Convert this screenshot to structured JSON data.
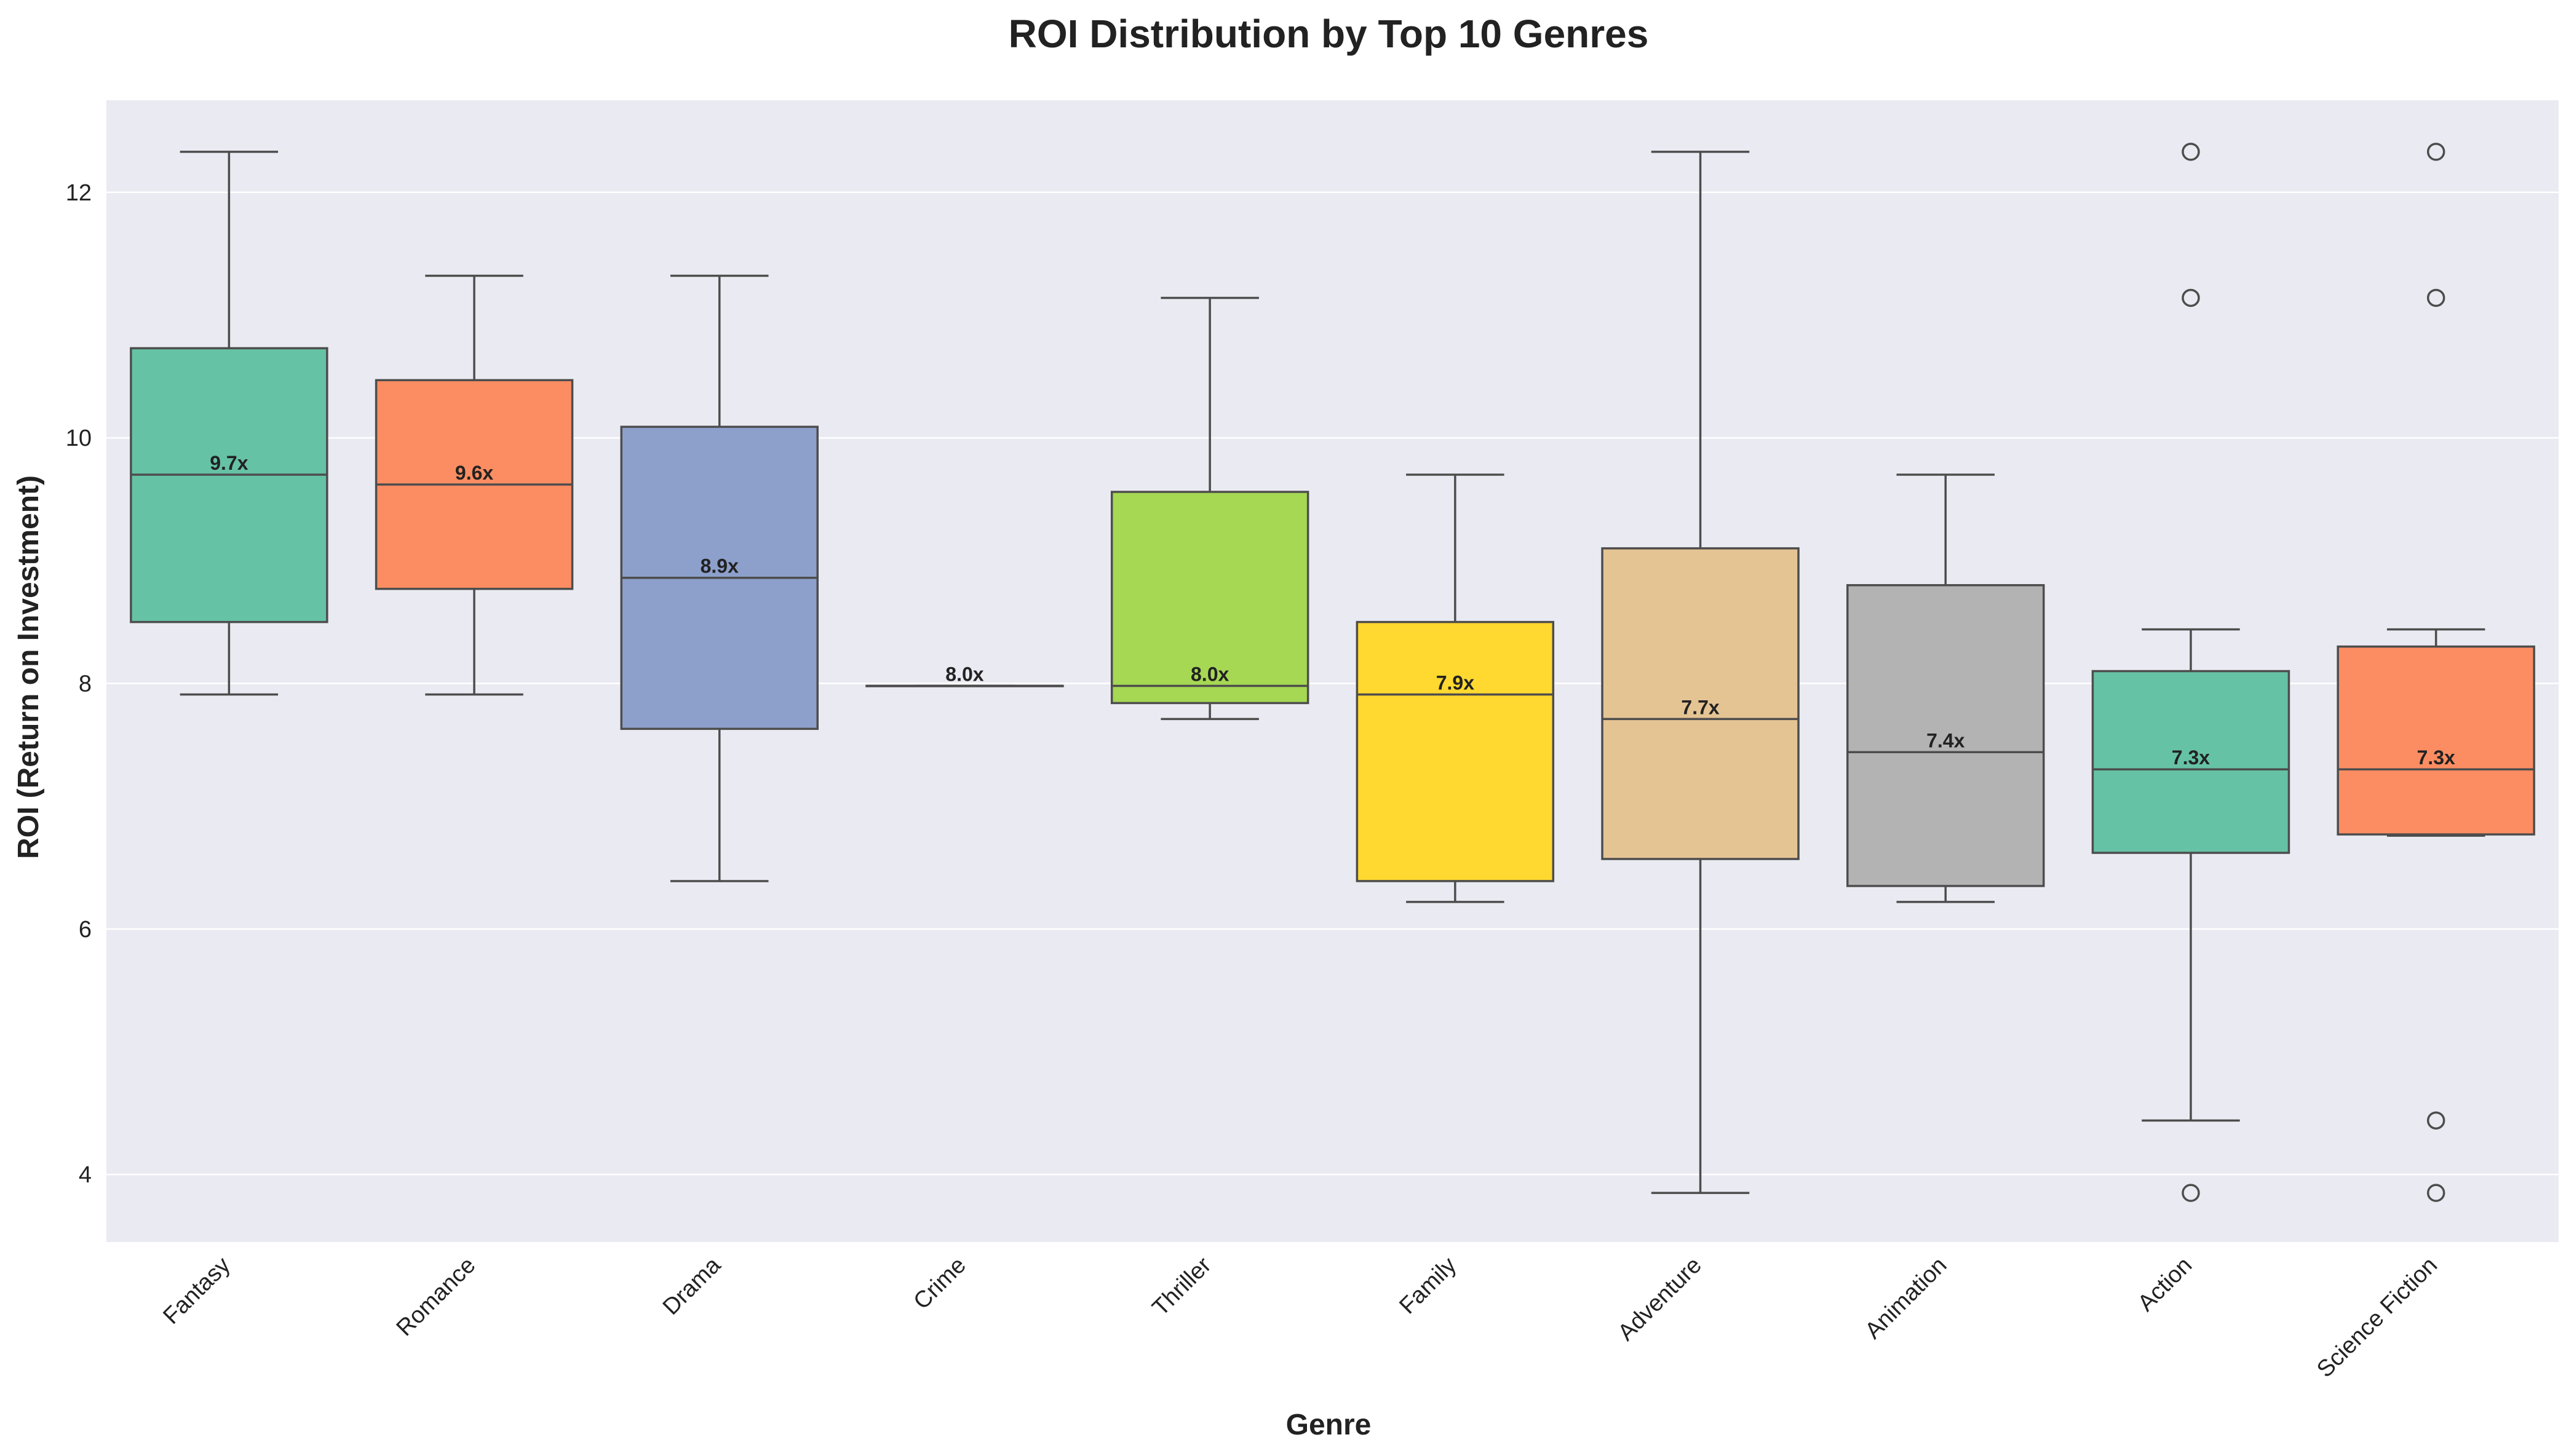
{
  "chart_data": {
    "type": "box",
    "title": "ROI Distribution by Top 10 Genres",
    "xlabel": "Genre",
    "ylabel": "ROI (Return on Investment)",
    "ylim": [
      3.45,
      12.75
    ],
    "yticks": [
      4,
      6,
      8,
      10,
      12
    ],
    "grid": true,
    "background_color": "#eaeaf2",
    "line_color": "#4d4d4d",
    "boxes": [
      {
        "category": "Fantasy",
        "color": "#66c2a5",
        "whisker_low": 7.91,
        "q1": 8.5,
        "median": 9.7,
        "q3": 10.73,
        "whisker_high": 12.33,
        "outliers": [],
        "median_label": "9.7x"
      },
      {
        "category": "Romance",
        "color": "#fc8d62",
        "whisker_low": 7.91,
        "q1": 8.77,
        "median": 9.62,
        "q3": 10.47,
        "whisker_high": 11.32,
        "outliers": [],
        "median_label": "9.6x"
      },
      {
        "category": "Drama",
        "color": "#8da0cb",
        "whisker_low": 6.39,
        "q1": 7.63,
        "median": 8.86,
        "q3": 10.09,
        "whisker_high": 11.32,
        "outliers": [],
        "median_label": "8.9x"
      },
      {
        "category": "Crime",
        "color": "#e78ac3",
        "whisker_low": 7.98,
        "q1": 7.98,
        "median": 7.98,
        "q3": 7.98,
        "whisker_high": 7.98,
        "outliers": [],
        "median_label": "8.0x"
      },
      {
        "category": "Thriller",
        "color": "#a6d854",
        "whisker_low": 7.71,
        "q1": 7.84,
        "median": 7.98,
        "q3": 9.56,
        "whisker_high": 11.14,
        "outliers": [],
        "median_label": "8.0x"
      },
      {
        "category": "Family",
        "color": "#ffd92f",
        "whisker_low": 6.22,
        "q1": 6.39,
        "median": 7.91,
        "q3": 8.5,
        "whisker_high": 9.7,
        "outliers": [],
        "median_label": "7.9x"
      },
      {
        "category": "Adventure",
        "color": "#e5c494",
        "whisker_low": 3.85,
        "q1": 6.57,
        "median": 7.71,
        "q3": 9.1,
        "whisker_high": 12.33,
        "outliers": [],
        "median_label": "7.7x"
      },
      {
        "category": "Animation",
        "color": "#b3b3b3",
        "whisker_low": 6.22,
        "q1": 6.35,
        "median": 7.44,
        "q3": 8.8,
        "whisker_high": 9.7,
        "outliers": [],
        "median_label": "7.4x"
      },
      {
        "category": "Action",
        "color": "#66c2a5",
        "whisker_low": 4.44,
        "q1": 6.62,
        "median": 7.3,
        "q3": 8.1,
        "whisker_high": 8.44,
        "outliers": [
          12.33,
          11.14,
          3.85
        ],
        "median_label": "7.3x"
      },
      {
        "category": "Science Fiction",
        "color": "#fc8d62",
        "whisker_low": 6.76,
        "q1": 6.77,
        "median": 7.3,
        "q3": 8.3,
        "whisker_high": 8.44,
        "outliers": [
          12.33,
          11.14,
          4.44,
          3.85
        ],
        "median_label": "7.3x"
      }
    ]
  }
}
